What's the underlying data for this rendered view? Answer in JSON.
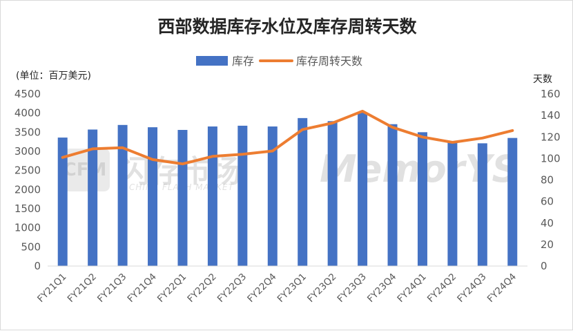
{
  "chart_data": {
    "type": "bar",
    "title": "西部数据库存水位及库存周转天数",
    "left_axis_unit": "(单位：百万美元)",
    "right_axis_unit": "天数",
    "categories": [
      "FY21Q1",
      "FY21Q2",
      "FY21Q3",
      "FY21Q4",
      "FY22Q1",
      "FY22Q2",
      "FY22Q3",
      "FY22Q4",
      "FY23Q1",
      "FY23Q2",
      "FY23Q3",
      "FY23Q4",
      "FY24Q1",
      "FY24Q2",
      "FY24Q3",
      "FY24Q4"
    ],
    "series": [
      {
        "name": "库存",
        "type": "bar",
        "axis": "left",
        "color": "#4472c4",
        "values": [
          3360,
          3570,
          3690,
          3630,
          3560,
          3650,
          3670,
          3650,
          3870,
          3790,
          4010,
          3710,
          3500,
          3270,
          3210,
          3350
        ]
      },
      {
        "name": "库存周转天数",
        "type": "line",
        "axis": "right",
        "color": "#ed7d31",
        "values": [
          101,
          109,
          110,
          99,
          95,
          102,
          104,
          107,
          127,
          133,
          144,
          129,
          120,
          115,
          119,
          126
        ]
      }
    ],
    "y_left": {
      "min": 0,
      "max": 4500,
      "step": 500
    },
    "y_right": {
      "min": 0,
      "max": 160,
      "step": 20
    },
    "legend_position": "top-center",
    "grid": false
  },
  "watermark": {
    "logo_text": "CFM",
    "cn_text": "闪存市场",
    "en_text": "CHINA FLASH MARKET",
    "brand_text": "MemorYS"
  }
}
